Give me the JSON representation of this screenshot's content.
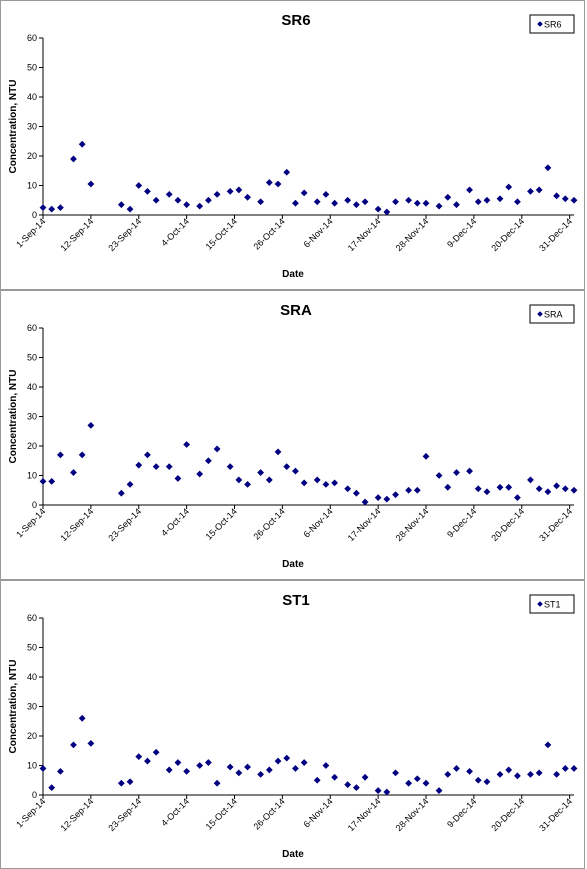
{
  "marker_color": "#000080",
  "chart_data": [
    {
      "type": "scatter",
      "title": "SR6",
      "xlabel": "Date",
      "ylabel": "Concentration, NTU",
      "ylim": [
        0,
        60
      ],
      "yticks": [
        "0",
        "10",
        "20",
        "30",
        "40",
        "50",
        "60"
      ],
      "xlim": [
        "2014-09-01",
        "2015-01-01"
      ],
      "xticks": [
        "1-Sep-14",
        "12-Sep-14",
        "23-Sep-14",
        "4-Oct-14",
        "15-Oct-14",
        "26-Oct-14",
        "6-Nov-14",
        "17-Nov-14",
        "28-Nov-14",
        "9-Dec-14",
        "20-Dec-14",
        "31-Dec-14"
      ],
      "grid": false,
      "legend": "top-right",
      "series": [
        {
          "name": "SR6",
          "x": [
            "2014-09-01",
            "2014-09-03",
            "2014-09-05",
            "2014-09-08",
            "2014-09-10",
            "2014-09-12",
            "2014-09-19",
            "2014-09-21",
            "2014-09-23",
            "2014-09-25",
            "2014-09-27",
            "2014-09-30",
            "2014-10-02",
            "2014-10-04",
            "2014-10-07",
            "2014-10-09",
            "2014-10-11",
            "2014-10-14",
            "2014-10-16",
            "2014-10-18",
            "2014-10-21",
            "2014-10-23",
            "2014-10-25",
            "2014-10-27",
            "2014-10-29",
            "2014-10-31",
            "2014-11-03",
            "2014-11-05",
            "2014-11-07",
            "2014-11-10",
            "2014-11-12",
            "2014-11-14",
            "2014-11-17",
            "2014-11-19",
            "2014-11-21",
            "2014-11-24",
            "2014-11-26",
            "2014-11-28",
            "2014-12-01",
            "2014-12-03",
            "2014-12-05",
            "2014-12-08",
            "2014-12-10",
            "2014-12-12",
            "2014-12-15",
            "2014-12-17",
            "2014-12-19",
            "2014-12-22",
            "2014-12-24",
            "2014-12-26",
            "2014-12-28",
            "2014-12-30",
            "2015-01-01"
          ],
          "y": [
            2.5,
            2,
            2.5,
            19,
            24,
            10.5,
            3.5,
            2,
            10,
            8,
            5,
            7,
            5,
            3.5,
            3,
            5,
            7,
            8,
            8.5,
            6,
            4.5,
            11,
            10.5,
            14.5,
            4,
            7.5,
            4.5,
            7,
            4,
            5,
            3.5,
            4.5,
            2,
            1,
            4.5,
            5,
            4,
            4,
            3,
            6,
            3.5,
            8.5,
            4.5,
            5,
            5.5,
            9.5,
            4.5,
            8,
            8.5,
            16,
            6.5,
            5.5,
            5
          ]
        }
      ]
    },
    {
      "type": "scatter",
      "title": "SRA",
      "xlabel": "Date",
      "ylabel": "Concentration, NTU",
      "ylim": [
        0,
        60
      ],
      "yticks": [
        "0",
        "10",
        "20",
        "30",
        "40",
        "50",
        "60"
      ],
      "xlim": [
        "2014-09-01",
        "2015-01-01"
      ],
      "xticks": [
        "1-Sep-14",
        "12-Sep-14",
        "23-Sep-14",
        "4-Oct-14",
        "15-Oct-14",
        "26-Oct-14",
        "6-Nov-14",
        "17-Nov-14",
        "28-Nov-14",
        "9-Dec-14",
        "20-Dec-14",
        "31-Dec-14"
      ],
      "grid": false,
      "legend": "top-right",
      "series": [
        {
          "name": "SRA",
          "x": [
            "2014-09-01",
            "2014-09-03",
            "2014-09-05",
            "2014-09-08",
            "2014-09-10",
            "2014-09-12",
            "2014-09-19",
            "2014-09-21",
            "2014-09-23",
            "2014-09-25",
            "2014-09-27",
            "2014-09-30",
            "2014-10-02",
            "2014-10-04",
            "2014-10-07",
            "2014-10-09",
            "2014-10-11",
            "2014-10-14",
            "2014-10-16",
            "2014-10-18",
            "2014-10-21",
            "2014-10-23",
            "2014-10-25",
            "2014-10-27",
            "2014-10-29",
            "2014-10-31",
            "2014-11-03",
            "2014-11-05",
            "2014-11-07",
            "2014-11-10",
            "2014-11-12",
            "2014-11-14",
            "2014-11-17",
            "2014-11-19",
            "2014-11-21",
            "2014-11-24",
            "2014-11-26",
            "2014-11-28",
            "2014-12-01",
            "2014-12-03",
            "2014-12-05",
            "2014-12-08",
            "2014-12-10",
            "2014-12-12",
            "2014-12-15",
            "2014-12-17",
            "2014-12-19",
            "2014-12-22",
            "2014-12-24",
            "2014-12-26",
            "2014-12-28",
            "2014-12-30",
            "2015-01-01"
          ],
          "y": [
            8,
            8,
            17,
            11,
            17,
            27,
            4,
            7,
            13.5,
            17,
            13,
            13,
            9,
            20.5,
            10.5,
            15,
            19,
            13,
            8.5,
            7,
            11,
            8.5,
            18,
            13,
            11.5,
            7.5,
            8.5,
            7,
            7.5,
            5.5,
            4,
            1,
            2.5,
            2,
            3.5,
            5,
            5,
            16.5,
            10,
            6,
            11,
            11.5,
            5.5,
            4.5,
            6,
            6,
            2.5,
            8.5,
            5.5,
            4.5,
            6.5,
            5.5,
            5
          ]
        }
      ]
    },
    {
      "type": "scatter",
      "title": "ST1",
      "xlabel": "Date",
      "ylabel": "Concentration, NTU",
      "ylim": [
        0,
        60
      ],
      "yticks": [
        "0",
        "10",
        "20",
        "30",
        "40",
        "50",
        "60"
      ],
      "xlim": [
        "2014-09-01",
        "2015-01-01"
      ],
      "xticks": [
        "1-Sep-14",
        "12-Sep-14",
        "23-Sep-14",
        "4-Oct-14",
        "15-Oct-14",
        "26-Oct-14",
        "6-Nov-14",
        "17-Nov-14",
        "28-Nov-14",
        "9-Dec-14",
        "20-Dec-14",
        "31-Dec-14"
      ],
      "grid": false,
      "legend": "top-right",
      "series": [
        {
          "name": "ST1",
          "x": [
            "2014-09-01",
            "2014-09-03",
            "2014-09-05",
            "2014-09-08",
            "2014-09-10",
            "2014-09-12",
            "2014-09-19",
            "2014-09-21",
            "2014-09-23",
            "2014-09-25",
            "2014-09-27",
            "2014-09-30",
            "2014-10-02",
            "2014-10-04",
            "2014-10-07",
            "2014-10-09",
            "2014-10-11",
            "2014-10-14",
            "2014-10-16",
            "2014-10-18",
            "2014-10-21",
            "2014-10-23",
            "2014-10-25",
            "2014-10-27",
            "2014-10-29",
            "2014-10-31",
            "2014-11-03",
            "2014-11-05",
            "2014-11-07",
            "2014-11-10",
            "2014-11-12",
            "2014-11-14",
            "2014-11-17",
            "2014-11-19",
            "2014-11-21",
            "2014-11-24",
            "2014-11-26",
            "2014-11-28",
            "2014-12-01",
            "2014-12-03",
            "2014-12-05",
            "2014-12-08",
            "2014-12-10",
            "2014-12-12",
            "2014-12-15",
            "2014-12-17",
            "2014-12-19",
            "2014-12-22",
            "2014-12-24",
            "2014-12-26",
            "2014-12-28",
            "2014-12-30",
            "2015-01-01"
          ],
          "y": [
            9,
            2.5,
            8,
            17,
            26,
            17.5,
            4,
            4.5,
            13,
            11.5,
            14.5,
            8.5,
            11,
            8,
            10,
            11,
            4,
            9.5,
            7.5,
            9.5,
            7,
            8.5,
            11.5,
            12.5,
            9,
            11,
            5,
            10,
            6,
            3.5,
            2.5,
            6,
            1.5,
            1,
            7.5,
            4,
            5.5,
            4,
            1.5,
            7,
            9,
            8,
            5,
            4.5,
            7,
            8.5,
            6.5,
            7,
            7.5,
            17,
            7,
            9,
            9
          ]
        }
      ]
    }
  ]
}
